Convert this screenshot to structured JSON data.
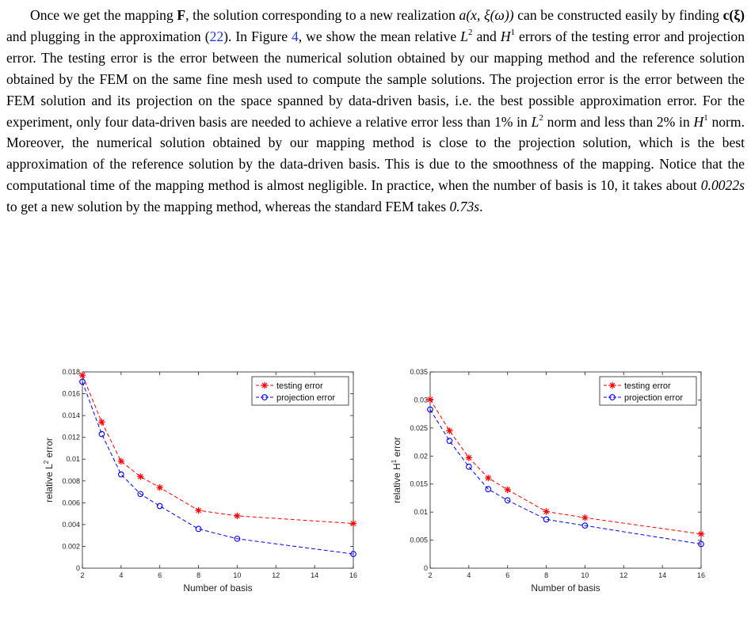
{
  "paragraph": {
    "s1": "Once we get the mapping ",
    "F": "F",
    "s2": ", the solution corresponding to a new realization ",
    "realization": "a(x, ξ(ω))",
    "s3": " can be constructed easily by finding ",
    "cxi": "c(ξ)",
    "s4": " and plugging in the approximation (",
    "eq_ref": "22",
    "s5": "). In Figure ",
    "fig_ref": "4",
    "s6": ", we show the mean relative ",
    "L": "L",
    "sq": "2",
    "s7": " and ",
    "H": "H",
    "one": "1",
    "s8": " errors of the testing error and projection error. The testing error is the error between the numerical solution obtained by our mapping method and the reference solution obtained by the FEM on the same fine mesh used to compute the sample solutions. The projection error is the error between the FEM solution and its projection on the space spanned by data-driven basis, i.e. the best possible approximation error. For the experiment, only four data-driven basis are needed to achieve a relative error less than 1% in ",
    "s9": " norm and less than 2% in ",
    "s10": " norm. Moreover, the numerical solution obtained by our mapping method is close to the projection solution, which is the best approximation of the reference solution by the data-driven basis. This is due to the smoothness of the mapping. Notice that the computational time of the mapping method is almost negligible. In practice, when the number of basis is 10, it takes about ",
    "t1": "0.0022s",
    "s11": " to get a new solution by the mapping method, whereas the standard FEM takes ",
    "t2": "0.73s",
    "s12": "."
  },
  "chart_data": [
    {
      "type": "line",
      "title": "",
      "xlabel": "Number of basis",
      "ylabel_text": "relative L",
      "ylabel_sup": "2",
      "ylabel_tail": " error",
      "xlim": [
        2,
        16
      ],
      "ylim": [
        0,
        0.018
      ],
      "x_ticks": [
        2,
        4,
        6,
        8,
        10,
        12,
        14,
        16
      ],
      "y_ticks": [
        "0",
        "0.002",
        "0.004",
        "0.006",
        "0.008",
        "0.01",
        "0.012",
        "0.014",
        "0.016",
        "0.018"
      ],
      "x": [
        2,
        3,
        4,
        5,
        6,
        8,
        10,
        16
      ],
      "grid": false,
      "legend_position": "top-right",
      "series": [
        {
          "name": "testing error",
          "color": "#ff0000",
          "marker": "star",
          "values": [
            0.0177,
            0.0134,
            0.0098,
            0.0084,
            0.0074,
            0.0053,
            0.0048,
            0.0041
          ]
        },
        {
          "name": "projection error",
          "color": "#0000ff",
          "marker": "circle",
          "values": [
            0.0171,
            0.0123,
            0.0086,
            0.0068,
            0.0057,
            0.0036,
            0.0027,
            0.0013
          ]
        }
      ]
    },
    {
      "type": "line",
      "title": "",
      "xlabel": "Number of basis",
      "ylabel_text": "relative H",
      "ylabel_sup": "1",
      "ylabel_tail": " error",
      "xlim": [
        2,
        16
      ],
      "ylim": [
        0,
        0.035
      ],
      "x_ticks": [
        2,
        4,
        6,
        8,
        10,
        12,
        14,
        16
      ],
      "y_ticks": [
        "0",
        "0.005",
        "0.01",
        "0.015",
        "0.02",
        "0.025",
        "0.03",
        "0.035"
      ],
      "x": [
        2,
        3,
        4,
        5,
        6,
        8,
        10,
        16
      ],
      "grid": false,
      "legend_position": "top-right",
      "series": [
        {
          "name": "testing error",
          "color": "#ff0000",
          "marker": "star",
          "values": [
            0.0301,
            0.0245,
            0.0197,
            0.0161,
            0.014,
            0.0101,
            0.009,
            0.0061
          ]
        },
        {
          "name": "projection error",
          "color": "#0000ff",
          "marker": "circle",
          "values": [
            0.0283,
            0.0227,
            0.0181,
            0.0141,
            0.0121,
            0.0087,
            0.0076,
            0.0043
          ]
        }
      ]
    }
  ]
}
